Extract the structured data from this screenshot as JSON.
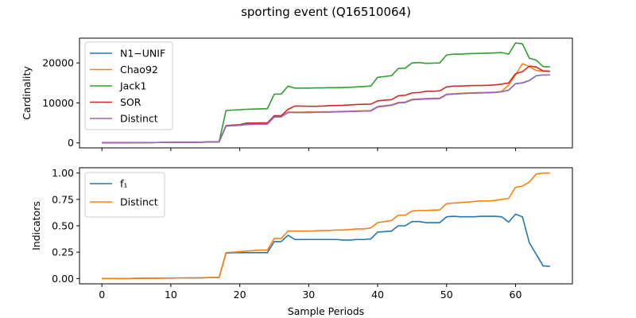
{
  "figure": {
    "title": "sporting event (Q16510064)"
  },
  "chart_data": [
    {
      "type": "line",
      "ylabel": "Cardinality",
      "xlabel": "",
      "xlim": [
        -3.25,
        68.25
      ],
      "ylim": [
        -1250,
        26200
      ],
      "xticks": [
        0,
        10,
        20,
        30,
        40,
        50,
        60
      ],
      "yticks": [
        0,
        10000,
        20000
      ],
      "ytick_labels": [
        "0",
        "10000",
        "20000"
      ],
      "legend_position": "upper-left",
      "x": [
        0,
        1,
        2,
        3,
        4,
        5,
        6,
        7,
        8,
        9,
        10,
        11,
        12,
        13,
        14,
        15,
        16,
        17,
        18,
        19,
        20,
        21,
        22,
        23,
        24,
        25,
        26,
        27,
        28,
        29,
        30,
        31,
        32,
        33,
        34,
        35,
        36,
        37,
        38,
        39,
        40,
        41,
        42,
        43,
        44,
        45,
        46,
        47,
        48,
        49,
        50,
        51,
        52,
        53,
        54,
        55,
        56,
        57,
        58,
        59,
        60,
        61,
        62,
        63,
        64,
        65
      ],
      "series": [
        {
          "name": "N1−UNIF",
          "color": "#1f77b4",
          "values": [
            50,
            50,
            55,
            60,
            65,
            70,
            75,
            80,
            90,
            100,
            110,
            120,
            140,
            150,
            170,
            200,
            230,
            250,
            4200,
            4300,
            4400,
            4600,
            4650,
            4700,
            4700,
            6500,
            6500,
            7600,
            7600,
            7600,
            7600,
            7650,
            7700,
            7700,
            7750,
            7800,
            7850,
            7900,
            7950,
            8000,
            9000,
            9200,
            9400,
            10000,
            10100,
            10800,
            10900,
            11000,
            11050,
            11100,
            12100,
            12200,
            12300,
            12400,
            12450,
            12500,
            12550,
            12600,
            12800,
            13200,
            14800,
            15000,
            15600,
            16800,
            17000,
            17000
          ]
        },
        {
          "name": "Chao92",
          "color": "#ff7f0e",
          "values": [
            50,
            50,
            55,
            60,
            65,
            70,
            75,
            80,
            90,
            100,
            110,
            120,
            140,
            150,
            170,
            200,
            230,
            250,
            4300,
            4400,
            4500,
            4800,
            4850,
            4900,
            4900,
            6600,
            6600,
            7700,
            7700,
            7700,
            7750,
            7750,
            7800,
            7800,
            7850,
            7900,
            7950,
            8000,
            8050,
            8100,
            9100,
            9300,
            9500,
            10100,
            10200,
            10900,
            11000,
            11100,
            11150,
            11200,
            12200,
            12300,
            12400,
            12500,
            12550,
            12600,
            12650,
            12700,
            12900,
            14500,
            17000,
            19800,
            19100,
            18100,
            17900,
            17900
          ]
        },
        {
          "name": "Jack1",
          "color": "#2ca02c",
          "values": [
            50,
            50,
            55,
            60,
            65,
            70,
            75,
            80,
            90,
            100,
            110,
            120,
            140,
            150,
            170,
            200,
            230,
            250,
            8100,
            8200,
            8300,
            8400,
            8450,
            8500,
            8550,
            12200,
            12200,
            14200,
            13700,
            13700,
            13700,
            13750,
            13750,
            13800,
            13800,
            13850,
            13900,
            14000,
            14100,
            14200,
            16400,
            16600,
            16800,
            18600,
            18700,
            20000,
            20100,
            19900,
            19950,
            20000,
            22000,
            22200,
            22200,
            22300,
            22350,
            22400,
            22450,
            22500,
            22600,
            22200,
            25000,
            24800,
            21200,
            20700,
            19100,
            19000
          ]
        },
        {
          "name": "SOR",
          "color": "#d62728",
          "values": [
            50,
            50,
            55,
            60,
            65,
            70,
            75,
            80,
            90,
            100,
            110,
            120,
            140,
            150,
            170,
            200,
            230,
            250,
            4300,
            4450,
            4550,
            4950,
            4950,
            5000,
            5000,
            6800,
            6800,
            8400,
            9200,
            9200,
            9150,
            9150,
            9200,
            9300,
            9350,
            9400,
            9500,
            9600,
            9650,
            9700,
            10500,
            10700,
            10800,
            11800,
            11900,
            12500,
            12600,
            12900,
            12900,
            13000,
            14000,
            14200,
            14200,
            14300,
            14350,
            14350,
            14400,
            14500,
            14700,
            15000,
            17300,
            17800,
            19200,
            19000,
            18000,
            17900
          ]
        },
        {
          "name": "Distinct",
          "color": "#9467bd",
          "values": [
            50,
            50,
            55,
            60,
            65,
            70,
            75,
            80,
            90,
            100,
            110,
            120,
            140,
            150,
            170,
            200,
            230,
            250,
            4200,
            4300,
            4400,
            4600,
            4650,
            4700,
            4700,
            6500,
            6500,
            7600,
            7600,
            7600,
            7600,
            7650,
            7700,
            7700,
            7750,
            7800,
            7850,
            7900,
            7950,
            8000,
            9000,
            9200,
            9400,
            10000,
            10100,
            10800,
            10900,
            11000,
            11050,
            11100,
            12100,
            12200,
            12300,
            12400,
            12450,
            12500,
            12550,
            12600,
            12800,
            13200,
            14800,
            15000,
            15600,
            16800,
            17000,
            17000
          ]
        }
      ]
    },
    {
      "type": "line",
      "ylabel": "Indicators",
      "xlabel": "Sample Periods",
      "xlim": [
        -3.25,
        68.25
      ],
      "ylim": [
        -0.05,
        1.05
      ],
      "xticks": [
        0,
        10,
        20,
        30,
        40,
        50,
        60
      ],
      "yticks": [
        0,
        0.25,
        0.5,
        0.75,
        1.0
      ],
      "ytick_labels": [
        "0.00",
        "0.25",
        "0.50",
        "0.75",
        "1.00"
      ],
      "legend_position": "upper-left",
      "x": [
        0,
        1,
        2,
        3,
        4,
        5,
        6,
        7,
        8,
        9,
        10,
        11,
        12,
        13,
        14,
        15,
        16,
        17,
        18,
        19,
        20,
        21,
        22,
        23,
        24,
        25,
        26,
        27,
        28,
        29,
        30,
        31,
        32,
        33,
        34,
        35,
        36,
        37,
        38,
        39,
        40,
        41,
        42,
        43,
        44,
        45,
        46,
        47,
        48,
        49,
        50,
        51,
        52,
        53,
        54,
        55,
        56,
        57,
        58,
        59,
        60,
        61,
        62,
        63,
        64,
        65
      ],
      "series": [
        {
          "name": "f₁",
          "color": "#1f77b4",
          "values": [
            0,
            0,
            0,
            0,
            0,
            0.002,
            0.002,
            0.003,
            0.003,
            0.004,
            0.004,
            0.005,
            0.005,
            0.006,
            0.006,
            0.008,
            0.01,
            0.01,
            0.24,
            0.245,
            0.245,
            0.245,
            0.245,
            0.245,
            0.245,
            0.35,
            0.35,
            0.41,
            0.37,
            0.37,
            0.37,
            0.37,
            0.37,
            0.37,
            0.37,
            0.365,
            0.365,
            0.37,
            0.37,
            0.375,
            0.44,
            0.445,
            0.45,
            0.5,
            0.5,
            0.54,
            0.54,
            0.53,
            0.53,
            0.53,
            0.585,
            0.59,
            0.585,
            0.585,
            0.585,
            0.59,
            0.59,
            0.59,
            0.585,
            0.535,
            0.61,
            0.585,
            0.34,
            0.23,
            0.12,
            0.115
          ]
        },
        {
          "name": "Distinct",
          "color": "#ff7f0e",
          "values": [
            0,
            0,
            0,
            0,
            0,
            0.002,
            0.002,
            0.003,
            0.003,
            0.004,
            0.004,
            0.005,
            0.005,
            0.006,
            0.006,
            0.008,
            0.01,
            0.01,
            0.245,
            0.25,
            0.255,
            0.26,
            0.265,
            0.27,
            0.27,
            0.38,
            0.38,
            0.45,
            0.45,
            0.45,
            0.45,
            0.452,
            0.455,
            0.455,
            0.46,
            0.46,
            0.465,
            0.47,
            0.47,
            0.48,
            0.53,
            0.54,
            0.55,
            0.6,
            0.6,
            0.64,
            0.645,
            0.645,
            0.648,
            0.65,
            0.71,
            0.715,
            0.72,
            0.725,
            0.73,
            0.735,
            0.735,
            0.74,
            0.75,
            0.76,
            0.865,
            0.875,
            0.915,
            0.99,
            1.0,
            1.0
          ]
        }
      ]
    }
  ]
}
